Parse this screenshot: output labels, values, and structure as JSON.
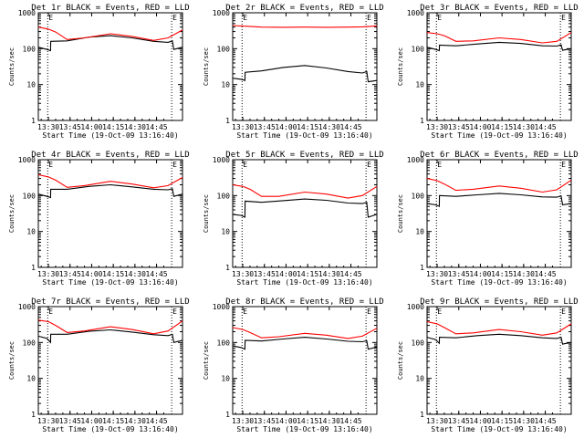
{
  "figure": {
    "xlabel": "Start Time (19-Oct-09 13:16:40)",
    "ylabel": "Counts/sec"
  },
  "style": {
    "events_color": "#000000",
    "lld_color": "#ff0000",
    "axis_color": "#000000",
    "background": "#ffffff"
  },
  "chart_data": [
    {
      "type": "line",
      "title": "Det 1r BLACK = Events, RED = LLD",
      "ylog": true,
      "ylim": [
        1,
        1000
      ],
      "yticks": [
        "1",
        "10",
        "100",
        "1000"
      ],
      "xticks": [
        "13:30",
        "13:45",
        "14:00",
        "14:15",
        "14:30",
        "14:45"
      ],
      "markers": [
        {
          "label": "E"
        },
        {
          "label": "E"
        }
      ],
      "series": [
        {
          "values": [
            [
              0.0,
              110
            ],
            [
              0.06,
              95
            ],
            [
              0.085,
              88
            ],
            [
              0.086,
              160
            ],
            [
              0.2,
              165
            ],
            [
              0.35,
              210
            ],
            [
              0.5,
              230
            ],
            [
              0.65,
              200
            ],
            [
              0.8,
              160
            ],
            [
              0.9,
              150
            ],
            [
              0.93,
              165
            ],
            [
              0.94,
              95
            ],
            [
              1.0,
              110
            ]
          ]
        },
        {
          "values": [
            [
              0.0,
              400
            ],
            [
              0.07,
              350
            ],
            [
              0.12,
              290
            ],
            [
              0.2,
              180
            ],
            [
              0.32,
              200
            ],
            [
              0.5,
              260
            ],
            [
              0.65,
              220
            ],
            [
              0.8,
              170
            ],
            [
              0.9,
              200
            ],
            [
              1.0,
              330
            ]
          ]
        }
      ]
    },
    {
      "type": "line",
      "title": "Det 2r BLACK = Events, RED = LLD",
      "ylog": true,
      "ylim": [
        1,
        1000
      ],
      "yticks": [
        "1",
        "10",
        "100",
        "1000"
      ],
      "xticks": [
        "13:30",
        "13:45",
        "14:00",
        "14:15",
        "14:30",
        "14:45"
      ],
      "markers": [
        {
          "label": "E"
        },
        {
          "label": "E"
        }
      ],
      "series": [
        {
          "values": [
            [
              0.0,
              15
            ],
            [
              0.06,
              14
            ],
            [
              0.085,
              13
            ],
            [
              0.086,
              22
            ],
            [
              0.2,
              24
            ],
            [
              0.35,
              30
            ],
            [
              0.5,
              34
            ],
            [
              0.65,
              29
            ],
            [
              0.8,
              23
            ],
            [
              0.9,
              21
            ],
            [
              0.93,
              23
            ],
            [
              0.94,
              12
            ],
            [
              1.0,
              13
            ]
          ]
        },
        {
          "values": [
            [
              0.0,
              440
            ],
            [
              0.1,
              420
            ],
            [
              0.2,
              400
            ],
            [
              0.35,
              395
            ],
            [
              0.5,
              400
            ],
            [
              0.65,
              395
            ],
            [
              0.8,
              400
            ],
            [
              0.9,
              405
            ],
            [
              1.0,
              430
            ]
          ]
        }
      ]
    },
    {
      "type": "line",
      "title": "Det 3r BLACK = Events, RED = LLD",
      "ylog": true,
      "ylim": [
        1,
        1000
      ],
      "yticks": [
        "1",
        "10",
        "100",
        "1000"
      ],
      "xticks": [
        "13:30",
        "13:45",
        "14:00",
        "14:15",
        "14:30",
        "14:45"
      ],
      "markers": [
        {
          "label": "E"
        },
        {
          "label": "E"
        }
      ],
      "series": [
        {
          "values": [
            [
              0.0,
              110
            ],
            [
              0.06,
              95
            ],
            [
              0.085,
              88
            ],
            [
              0.086,
              125
            ],
            [
              0.2,
              120
            ],
            [
              0.35,
              135
            ],
            [
              0.5,
              150
            ],
            [
              0.65,
              140
            ],
            [
              0.8,
              120
            ],
            [
              0.9,
              118
            ],
            [
              0.93,
              128
            ],
            [
              0.94,
              90
            ],
            [
              1.0,
              100
            ]
          ]
        },
        {
          "values": [
            [
              0.0,
              280
            ],
            [
              0.07,
              260
            ],
            [
              0.12,
              230
            ],
            [
              0.2,
              160
            ],
            [
              0.32,
              165
            ],
            [
              0.5,
              200
            ],
            [
              0.65,
              180
            ],
            [
              0.8,
              145
            ],
            [
              0.9,
              160
            ],
            [
              1.0,
              280
            ]
          ]
        }
      ]
    },
    {
      "type": "line",
      "title": "Det 4r BLACK = Events, RED = LLD",
      "ylog": true,
      "ylim": [
        1,
        1000
      ],
      "yticks": [
        "1",
        "10",
        "100",
        "1000"
      ],
      "xticks": [
        "13:30",
        "13:45",
        "14:00",
        "14:15",
        "14:30",
        "14:45"
      ],
      "markers": [
        {
          "label": "E"
        },
        {
          "label": "E"
        }
      ],
      "series": [
        {
          "values": [
            [
              0.0,
              110
            ],
            [
              0.06,
              95
            ],
            [
              0.085,
              88
            ],
            [
              0.086,
              150
            ],
            [
              0.2,
              150
            ],
            [
              0.35,
              180
            ],
            [
              0.5,
              200
            ],
            [
              0.65,
              175
            ],
            [
              0.8,
              150
            ],
            [
              0.9,
              145
            ],
            [
              0.93,
              155
            ],
            [
              0.94,
              95
            ],
            [
              1.0,
              110
            ]
          ]
        },
        {
          "values": [
            [
              0.0,
              380
            ],
            [
              0.07,
              330
            ],
            [
              0.12,
              270
            ],
            [
              0.2,
              170
            ],
            [
              0.32,
              190
            ],
            [
              0.5,
              250
            ],
            [
              0.65,
              210
            ],
            [
              0.8,
              165
            ],
            [
              0.9,
              190
            ],
            [
              1.0,
              320
            ]
          ]
        }
      ]
    },
    {
      "type": "line",
      "title": "Det 5r BLACK = Events, RED = LLD",
      "ylog": true,
      "ylim": [
        1,
        1000
      ],
      "yticks": [
        "1",
        "10",
        "100",
        "1000"
      ],
      "xticks": [
        "13:30",
        "13:45",
        "14:00",
        "14:15",
        "14:30",
        "14:45"
      ],
      "markers": [
        {
          "label": "E"
        },
        {
          "label": "E"
        }
      ],
      "series": [
        {
          "values": [
            [
              0.0,
              30
            ],
            [
              0.06,
              28
            ],
            [
              0.085,
              25
            ],
            [
              0.086,
              70
            ],
            [
              0.2,
              65
            ],
            [
              0.35,
              72
            ],
            [
              0.5,
              80
            ],
            [
              0.65,
              74
            ],
            [
              0.8,
              62
            ],
            [
              0.9,
              60
            ],
            [
              0.93,
              65
            ],
            [
              0.94,
              25
            ],
            [
              1.0,
              30
            ]
          ]
        },
        {
          "values": [
            [
              0.0,
              200
            ],
            [
              0.07,
              180
            ],
            [
              0.12,
              150
            ],
            [
              0.2,
              95
            ],
            [
              0.32,
              95
            ],
            [
              0.5,
              125
            ],
            [
              0.65,
              110
            ],
            [
              0.8,
              85
            ],
            [
              0.9,
              100
            ],
            [
              1.0,
              180
            ]
          ]
        }
      ]
    },
    {
      "type": "line",
      "title": "Det 6r BLACK = Events, RED = LLD",
      "ylog": true,
      "ylim": [
        1,
        1000
      ],
      "yticks": [
        "1",
        "10",
        "100",
        "1000"
      ],
      "xticks": [
        "13:30",
        "13:45",
        "14:00",
        "14:15",
        "14:30",
        "14:45"
      ],
      "markers": [
        {
          "label": "E"
        },
        {
          "label": "E"
        }
      ],
      "series": [
        {
          "values": [
            [
              0.0,
              60
            ],
            [
              0.06,
              55
            ],
            [
              0.085,
              50
            ],
            [
              0.086,
              100
            ],
            [
              0.2,
              95
            ],
            [
              0.35,
              105
            ],
            [
              0.5,
              115
            ],
            [
              0.65,
              105
            ],
            [
              0.8,
              92
            ],
            [
              0.9,
              90
            ],
            [
              0.93,
              98
            ],
            [
              0.94,
              55
            ],
            [
              1.0,
              60
            ]
          ]
        },
        {
          "values": [
            [
              0.0,
              300
            ],
            [
              0.07,
              260
            ],
            [
              0.12,
              210
            ],
            [
              0.2,
              140
            ],
            [
              0.32,
              150
            ],
            [
              0.5,
              185
            ],
            [
              0.65,
              160
            ],
            [
              0.8,
              125
            ],
            [
              0.9,
              145
            ],
            [
              1.0,
              270
            ]
          ]
        }
      ]
    },
    {
      "type": "line",
      "title": "Det 7r BLACK = Events, RED = LLD",
      "ylog": true,
      "ylim": [
        1,
        1000
      ],
      "yticks": [
        "1",
        "10",
        "100",
        "1000"
      ],
      "xticks": [
        "13:30",
        "13:45",
        "14:00",
        "14:15",
        "14:30",
        "14:45"
      ],
      "markers": [
        {
          "label": "E"
        },
        {
          "label": "E"
        }
      ],
      "series": [
        {
          "values": [
            [
              0.0,
              150
            ],
            [
              0.06,
              130
            ],
            [
              0.085,
              100
            ],
            [
              0.086,
              170
            ],
            [
              0.2,
              170
            ],
            [
              0.35,
              205
            ],
            [
              0.5,
              225
            ],
            [
              0.65,
              195
            ],
            [
              0.8,
              165
            ],
            [
              0.9,
              155
            ],
            [
              0.93,
              170
            ],
            [
              0.94,
              100
            ],
            [
              1.0,
              115
            ]
          ]
        },
        {
          "values": [
            [
              0.0,
              420
            ],
            [
              0.07,
              380
            ],
            [
              0.12,
              300
            ],
            [
              0.2,
              190
            ],
            [
              0.32,
              210
            ],
            [
              0.5,
              275
            ],
            [
              0.65,
              230
            ],
            [
              0.8,
              175
            ],
            [
              0.9,
              210
            ],
            [
              1.0,
              400
            ]
          ]
        }
      ]
    },
    {
      "type": "line",
      "title": "Det 8r BLACK = Events, RED = LLD",
      "ylog": true,
      "ylim": [
        1,
        1000
      ],
      "yticks": [
        "1",
        "10",
        "100",
        "1000"
      ],
      "xticks": [
        "13:30",
        "13:45",
        "14:00",
        "14:15",
        "14:30",
        "14:45"
      ],
      "markers": [
        {
          "label": "E"
        },
        {
          "label": "E"
        }
      ],
      "series": [
        {
          "values": [
            [
              0.0,
              80
            ],
            [
              0.06,
              72
            ],
            [
              0.085,
              65
            ],
            [
              0.086,
              115
            ],
            [
              0.2,
              110
            ],
            [
              0.35,
              125
            ],
            [
              0.5,
              140
            ],
            [
              0.65,
              125
            ],
            [
              0.8,
              108
            ],
            [
              0.9,
              105
            ],
            [
              0.93,
              112
            ],
            [
              0.94,
              65
            ],
            [
              1.0,
              75
            ]
          ]
        },
        {
          "values": [
            [
              0.0,
              260
            ],
            [
              0.07,
              230
            ],
            [
              0.12,
              190
            ],
            [
              0.2,
              135
            ],
            [
              0.32,
              145
            ],
            [
              0.5,
              180
            ],
            [
              0.65,
              160
            ],
            [
              0.8,
              130
            ],
            [
              0.9,
              150
            ],
            [
              1.0,
              250
            ]
          ]
        }
      ]
    },
    {
      "type": "line",
      "title": "Det 9r BLACK = Events, RED = LLD",
      "ylog": true,
      "ylim": [
        1,
        1000
      ],
      "yticks": [
        "1",
        "10",
        "100",
        "1000"
      ],
      "xticks": [
        "13:30",
        "13:45",
        "14:00",
        "14:15",
        "14:30",
        "14:45"
      ],
      "markers": [
        {
          "label": "E"
        },
        {
          "label": "E"
        }
      ],
      "series": [
        {
          "values": [
            [
              0.0,
              140
            ],
            [
              0.06,
              120
            ],
            [
              0.085,
              95
            ],
            [
              0.086,
              140
            ],
            [
              0.2,
              135
            ],
            [
              0.35,
              155
            ],
            [
              0.5,
              170
            ],
            [
              0.65,
              155
            ],
            [
              0.8,
              135
            ],
            [
              0.9,
              130
            ],
            [
              0.93,
              140
            ],
            [
              0.94,
              90
            ],
            [
              1.0,
              100
            ]
          ]
        },
        {
          "values": [
            [
              0.0,
              380
            ],
            [
              0.07,
              330
            ],
            [
              0.12,
              260
            ],
            [
              0.2,
              175
            ],
            [
              0.32,
              185
            ],
            [
              0.5,
              230
            ],
            [
              0.65,
              200
            ],
            [
              0.8,
              160
            ],
            [
              0.9,
              185
            ],
            [
              1.0,
              330
            ]
          ]
        }
      ]
    }
  ]
}
